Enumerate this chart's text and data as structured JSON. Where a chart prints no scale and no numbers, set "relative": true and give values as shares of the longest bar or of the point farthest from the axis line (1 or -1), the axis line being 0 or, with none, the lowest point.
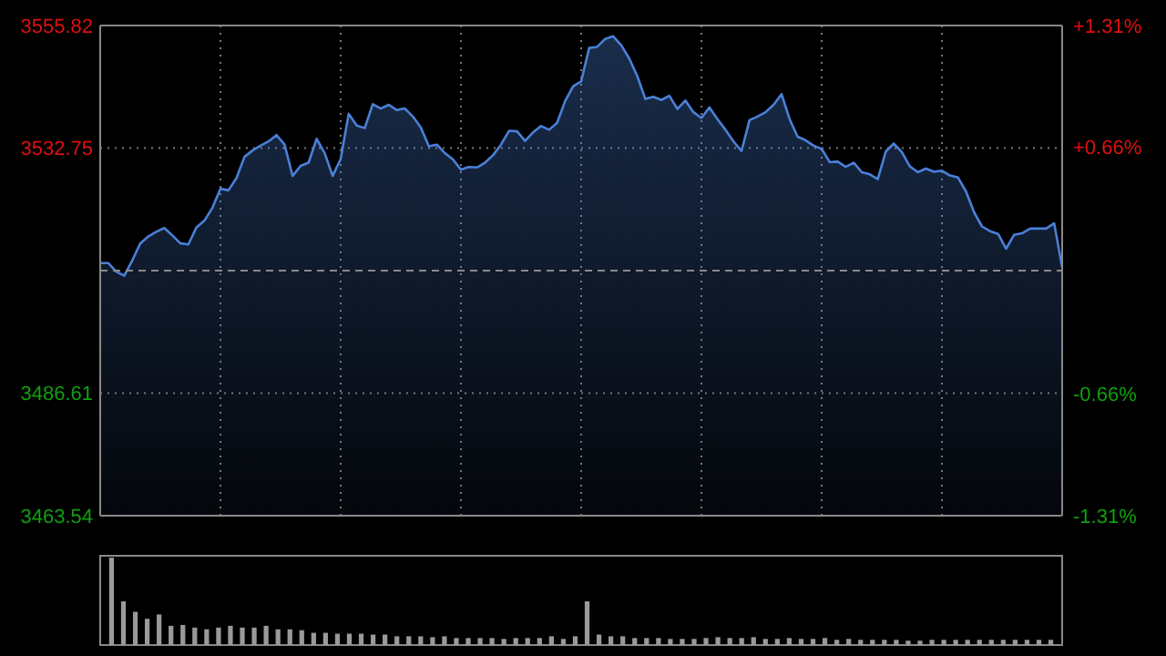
{
  "chart_data": [
    {
      "type": "area",
      "categories": [
        null,
        null,
        null,
        null,
        null,
        null,
        null,
        null,
        null,
        null,
        null,
        null,
        null,
        null,
        null,
        null,
        null,
        null,
        null,
        null,
        null,
        null,
        null,
        null,
        null,
        null,
        null,
        null,
        null,
        null,
        null,
        null,
        null,
        null,
        null,
        null,
        null,
        null,
        null,
        null,
        null,
        null,
        null,
        null,
        null,
        null,
        null,
        null,
        null,
        null,
        null,
        null,
        null,
        null,
        null,
        null,
        null,
        null,
        null,
        null,
        null,
        null,
        null,
        null,
        null,
        null,
        null,
        null,
        null,
        null,
        null,
        null,
        null,
        null,
        null,
        null,
        null,
        null,
        null,
        null,
        null,
        null,
        null,
        null,
        null,
        null,
        null,
        null,
        null,
        null,
        null,
        null,
        null,
        null,
        null,
        null,
        null,
        null,
        null,
        null,
        null,
        null,
        null,
        null,
        null,
        null,
        null,
        null,
        null,
        null,
        null,
        null,
        null,
        null,
        null,
        null,
        null,
        null,
        null,
        null,
        null
      ],
      "ylim": [
        3463.54,
        3555.82
      ],
      "yticks": [
        3463.54,
        3486.61,
        3532.75,
        3555.82
      ],
      "y2lim": [
        -1.31,
        1.31
      ],
      "y2ticks": [
        {
          "value": -1.31,
          "label": "-1.31%"
        },
        {
          "value": -0.66,
          "label": "-0.66%"
        },
        {
          "value": 0.66,
          "label": "+0.66%"
        },
        {
          "value": 1.31,
          "label": "+1.31%"
        }
      ],
      "grid": true,
      "ref_lines": [
        {
          "axis": "y",
          "value": 3509.68,
          "color": "#8a8a8a",
          "line_style": "dashed"
        }
      ],
      "series": [
        {
          "color": "#4a80d8",
          "values": [
            3511.1,
            3511.1,
            3509.5,
            3508.7,
            3511.6,
            3514.8,
            3516.1,
            3517.0,
            3517.7,
            3516.3,
            3514.8,
            3514.6,
            3517.8,
            3519.1,
            3521.5,
            3525.1,
            3524.8,
            3527.1,
            3531.1,
            3532.3,
            3533.2,
            3534.0,
            3535.2,
            3533.4,
            3527.5,
            3529.4,
            3530.0,
            3534.5,
            3531.8,
            3527.5,
            3530.7,
            3539.2,
            3537.0,
            3536.5,
            3541.0,
            3540.2,
            3540.9,
            3539.9,
            3540.2,
            3538.7,
            3536.6,
            3533.1,
            3533.4,
            3531.8,
            3530.6,
            3528.7,
            3529.2,
            3529.1,
            3530.0,
            3531.4,
            3533.4,
            3536.0,
            3535.9,
            3534.1,
            3535.7,
            3536.9,
            3536.2,
            3537.5,
            3541.6,
            3544.4,
            3545.3,
            3551.6,
            3551.8,
            3553.3,
            3553.8,
            3552.1,
            3549.6,
            3546.3,
            3542.0,
            3542.4,
            3541.8,
            3542.6,
            3540.1,
            3541.7,
            3539.5,
            3538.4,
            3540.4,
            3538.2,
            3536.2,
            3534.0,
            3532.2,
            3538.0,
            3538.7,
            3539.5,
            3540.9,
            3542.9,
            3538.2,
            3534.9,
            3534.2,
            3533.2,
            3532.6,
            3530.1,
            3530.2,
            3529.2,
            3530.0,
            3528.2,
            3527.8,
            3526.9,
            3532.1,
            3533.6,
            3532.0,
            3529.3,
            3528.2,
            3528.9,
            3528.3,
            3528.5,
            3527.6,
            3527.2,
            3524.6,
            3520.7,
            3518.0,
            3517.1,
            3516.6,
            3513.8,
            3516.4,
            3516.7,
            3517.6,
            3517.6,
            3517.6,
            3518.6,
            3510.3
          ]
        }
      ]
    },
    {
      "type": "bar",
      "relative": true,
      "color": "#9a9a9a",
      "categories": [
        null,
        null,
        null,
        null,
        null,
        null,
        null,
        null,
        null,
        null,
        null,
        null,
        null,
        null,
        null,
        null,
        null,
        null,
        null,
        null,
        null,
        null,
        null,
        null,
        null,
        null,
        null,
        null,
        null,
        null,
        null,
        null,
        null,
        null,
        null,
        null,
        null,
        null,
        null,
        null,
        null,
        null,
        null,
        null,
        null,
        null,
        null,
        null,
        null,
        null,
        null,
        null,
        null,
        null,
        null,
        null,
        null,
        null,
        null,
        null,
        null,
        null,
        null,
        null,
        null,
        null,
        null,
        null,
        null,
        null,
        null,
        null,
        null,
        null,
        null,
        null,
        null,
        null,
        null,
        null
      ],
      "values": [
        1.0,
        0.5,
        0.38,
        0.3,
        0.35,
        0.22,
        0.23,
        0.2,
        0.18,
        0.2,
        0.22,
        0.2,
        0.2,
        0.22,
        0.18,
        0.18,
        0.17,
        0.14,
        0.14,
        0.13,
        0.13,
        0.13,
        0.12,
        0.12,
        0.1,
        0.1,
        0.1,
        0.09,
        0.1,
        0.08,
        0.08,
        0.08,
        0.08,
        0.07,
        0.08,
        0.08,
        0.08,
        0.1,
        0.07,
        0.1,
        0.5,
        0.12,
        0.1,
        0.1,
        0.08,
        0.08,
        0.08,
        0.07,
        0.07,
        0.07,
        0.08,
        0.09,
        0.08,
        0.08,
        0.09,
        0.07,
        0.07,
        0.08,
        0.07,
        0.07,
        0.08,
        0.06,
        0.07,
        0.06,
        0.06,
        0.06,
        0.06,
        0.05,
        0.05,
        0.06,
        0.06,
        0.06,
        0.06,
        0.06,
        0.06,
        0.06,
        0.06,
        0.06,
        0.06,
        0.06
      ]
    }
  ]
}
